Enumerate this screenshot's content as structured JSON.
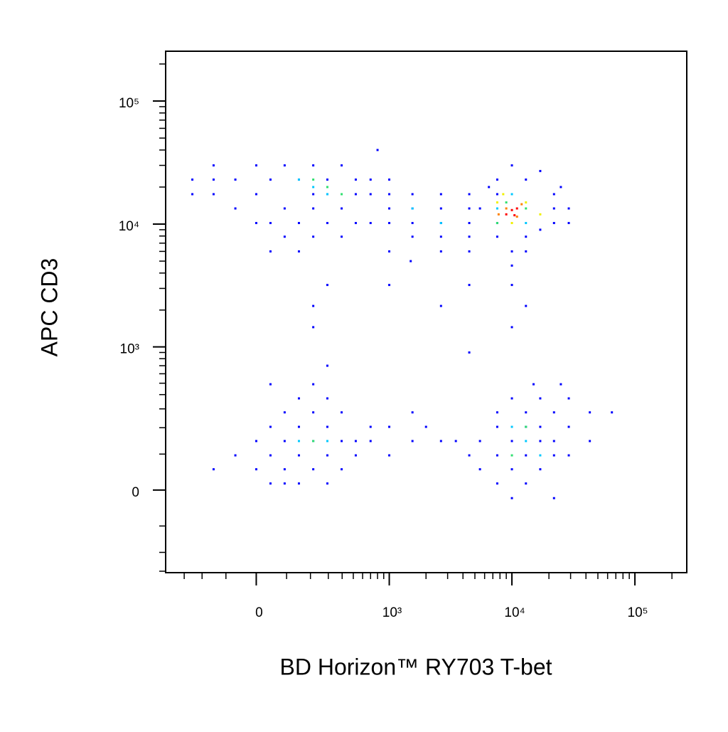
{
  "chart_data": {
    "type": "scatter",
    "x_label": "BD Horizon™ RY703 T-bet",
    "y_label": "APC CD3",
    "scale": "biexponential",
    "xlim": [
      -440,
      264000
    ],
    "ylim": [
      -309,
      254000
    ],
    "xticks": [
      0,
      {
        "value": 1000,
        "label": "10³"
      },
      {
        "value": 10000,
        "label": "10⁴"
      },
      {
        "value": 100000,
        "label": "10⁵"
      }
    ],
    "yticks": [
      0,
      {
        "value": 1000,
        "label": "10³"
      },
      {
        "value": 10000,
        "label": "10⁴"
      },
      {
        "value": 100000,
        "label": "10⁵"
      }
    ],
    "xticks_minor": [
      -300,
      -200,
      -100,
      100,
      200,
      300,
      400,
      500,
      600,
      700,
      800,
      900,
      2000,
      3000,
      4000,
      5000,
      6000,
      7000,
      8000,
      9000,
      20000,
      30000,
      40000,
      50000,
      60000,
      70000,
      80000,
      90000,
      200000
    ],
    "yticks_minor": [
      -300,
      -200,
      -100,
      100,
      200,
      300,
      400,
      500,
      600,
      700,
      800,
      900,
      2000,
      3000,
      4000,
      5000,
      6000,
      7000,
      8000,
      9000,
      20000,
      30000,
      40000,
      50000,
      60000,
      70000,
      80000,
      90000,
      200000
    ],
    "series": [
      {
        "color": "#0000ff",
        "x": [
          -251,
          -148,
          -148,
          -67,
          -67,
          0,
          0,
          45,
          45,
          93,
          93,
          93,
          148,
          148,
          148,
          214,
          214,
          214,
          214,
          294,
          294,
          294,
          396,
          396,
          396,
          525,
          525,
          525,
          45,
          0,
          -148,
          -251,
          700,
          700,
          700,
          1000,
          1000,
          1000,
          1000,
          1550,
          1550,
          1550,
          1550,
          2650,
          2650,
          2650,
          2650,
          4500,
          4500,
          4500,
          4500,
          1000,
          2650,
          4500,
          7600,
          7600,
          7600,
          7600,
          13000,
          13000,
          13000,
          22000,
          22000,
          22000,
          29000,
          29000,
          10000,
          10000,
          5500,
          17000,
          10000,
          17000,
          6500,
          25000,
          -67,
          0,
          0,
          45,
          45,
          45,
          93,
          93,
          93,
          93,
          148,
          148,
          148,
          148,
          214,
          214,
          214,
          294,
          294,
          294,
          294,
          396,
          396,
          396,
          525,
          525,
          700,
          700,
          1000,
          1000,
          45,
          214,
          -148,
          1550,
          2650,
          1550,
          4500,
          2000,
          3500,
          5500,
          5500,
          7600,
          7600,
          7600,
          7600,
          10000,
          10000,
          10000,
          10000,
          13000,
          13000,
          13000,
          13000,
          17000,
          17000,
          17000,
          17000,
          22000,
          22000,
          22000,
          22000,
          29000,
          29000,
          29000,
          43000,
          43000,
          65000,
          15000,
          25000,
          214,
          214,
          294,
          1000,
          2650,
          4500,
          10000,
          13000,
          4500,
          294,
          800,
          1500,
          10000
        ],
        "y": [
          23000,
          17500,
          30000,
          23000,
          13400,
          30000,
          17500,
          23000,
          10200,
          30000,
          13400,
          7900,
          23000,
          10200,
          6000,
          30000,
          17500,
          13400,
          7900,
          23000,
          10200,
          17500,
          30000,
          13400,
          7900,
          23000,
          17500,
          10200,
          6000,
          10200,
          23000,
          17500,
          17500,
          10200,
          23000,
          17500,
          13400,
          10200,
          23000,
          13400,
          10200,
          17500,
          7900,
          10200,
          13400,
          7900,
          17500,
          10200,
          13400,
          7900,
          17500,
          6000,
          6000,
          6000,
          17500,
          10200,
          7900,
          23000,
          23000,
          7900,
          6000,
          13400,
          17500,
          10200,
          13400,
          10200,
          4600,
          30000,
          13400,
          27000,
          6000,
          9000,
          20000,
          20000,
          96,
          145,
          55,
          204,
          96,
          17,
          279,
          145,
          55,
          17,
          204,
          96,
          371,
          17,
          279,
          145,
          55,
          204,
          96,
          17,
          371,
          145,
          279,
          55,
          145,
          96,
          204,
          145,
          204,
          96,
          490,
          490,
          55,
          145,
          145,
          279,
          96,
          204,
          145,
          145,
          55,
          204,
          96,
          17,
          279,
          371,
          145,
          55,
          -21,
          279,
          204,
          96,
          17,
          204,
          145,
          55,
          371,
          279,
          145,
          96,
          -21,
          204,
          371,
          96,
          145,
          279,
          279,
          490,
          490,
          2160,
          1450,
          3200,
          3200,
          2160,
          3200,
          1450,
          2160,
          900,
          700,
          40000,
          5000,
          3200
        ]
      },
      {
        "color": "#00c8ff",
        "x": [
          148,
          294,
          214,
          1550,
          2650,
          7600,
          13000,
          10000,
          148,
          294,
          13000,
          10000,
          17000
        ],
        "y": [
          23000,
          17500,
          20000,
          13400,
          10200,
          13400,
          10200,
          17500,
          145,
          145,
          145,
          204,
          96
        ]
      },
      {
        "color": "#30e070",
        "x": [
          214,
          294,
          396,
          9000,
          13000,
          7600,
          214,
          13000,
          10000
        ],
        "y": [
          23000,
          20000,
          17500,
          15000,
          13400,
          10200,
          145,
          204,
          96
        ]
      },
      {
        "color": "#f0f000",
        "x": [
          7600,
          13000,
          10000,
          17000,
          8500
        ],
        "y": [
          15000,
          15000,
          10200,
          12000,
          17500
        ]
      },
      {
        "color": "#ff8000",
        "x": [
          9000,
          11000,
          12000,
          7800
        ],
        "y": [
          13400,
          11500,
          14500,
          12000
        ]
      },
      {
        "color": "#ff0000",
        "x": [
          10000,
          9000,
          11000,
          10500
        ],
        "y": [
          13000,
          12000,
          13400,
          11800
        ]
      }
    ]
  }
}
